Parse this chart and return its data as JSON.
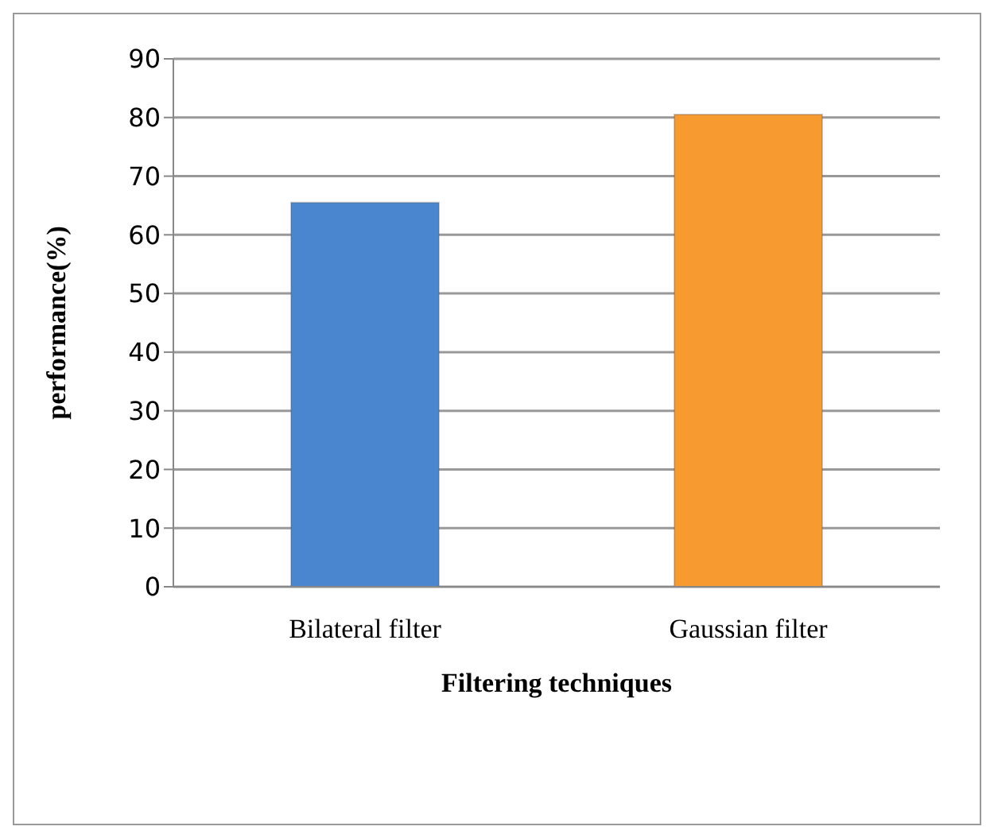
{
  "chart_data": {
    "type": "bar",
    "xlabel": "Filtering techniques",
    "ylabel": "performance(%)",
    "categories": [
      "Bilateral filter",
      "Gaussian filter"
    ],
    "values": [
      65.5,
      80.5
    ],
    "colors": [
      "#4a86d0",
      "#f79a30"
    ],
    "ylim": [
      0,
      90
    ],
    "yticks": [
      0,
      10,
      20,
      30,
      40,
      50,
      60,
      70,
      80,
      90
    ],
    "grid": "y"
  }
}
